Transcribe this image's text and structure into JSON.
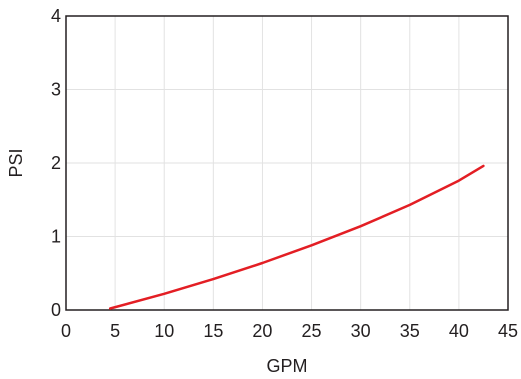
{
  "chart_data": {
    "type": "line",
    "title": "",
    "xlabel": "GPM",
    "ylabel": "PSI",
    "xlim": [
      0,
      45
    ],
    "ylim": [
      0,
      4
    ],
    "xticks": [
      0,
      5,
      10,
      15,
      20,
      25,
      30,
      35,
      40,
      45
    ],
    "yticks": [
      0,
      1,
      2,
      3,
      4
    ],
    "grid": true,
    "legend": "none",
    "series": [
      {
        "color": "#e31e24",
        "x": [
          4.5,
          10,
          15,
          20,
          25,
          30,
          35,
          40,
          42.5
        ],
        "y": [
          0.02,
          0.22,
          0.42,
          0.64,
          0.88,
          1.14,
          1.43,
          1.76,
          1.96
        ]
      }
    ]
  }
}
